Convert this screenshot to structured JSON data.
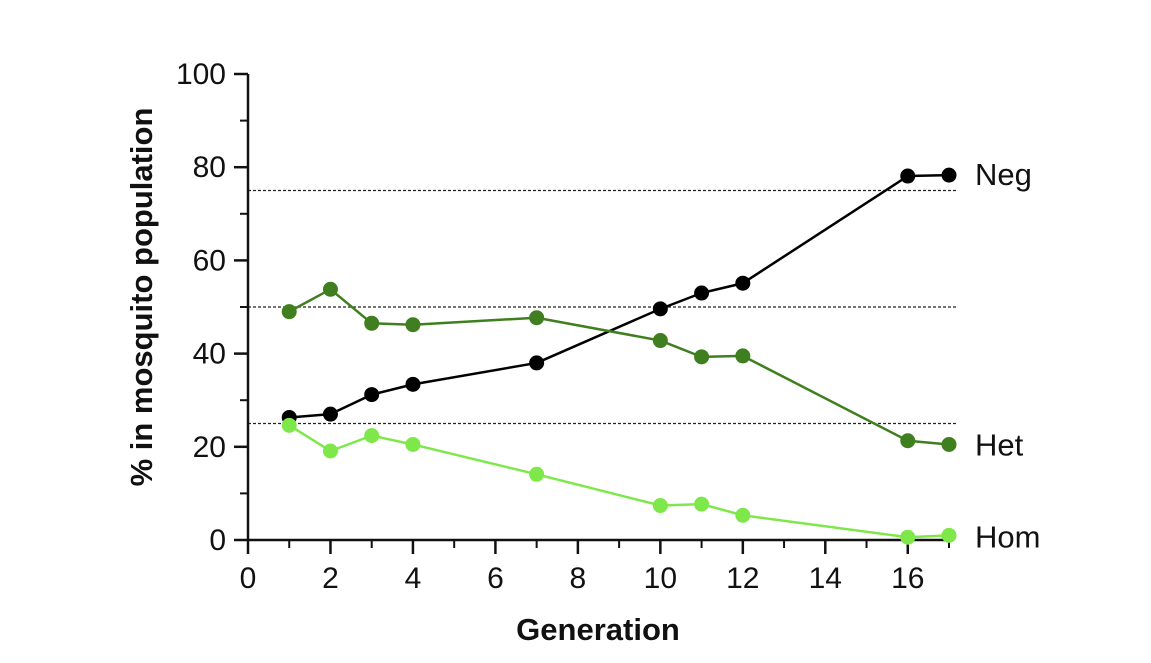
{
  "chart_data": {
    "type": "line",
    "xlabel": "Generation",
    "ylabel": "% in mosquito population",
    "xlim": [
      0,
      17
    ],
    "ylim": [
      0,
      100
    ],
    "x_ticks": [
      0,
      2,
      4,
      6,
      8,
      10,
      12,
      14,
      16
    ],
    "y_ticks": [
      0,
      20,
      40,
      60,
      80,
      100
    ],
    "reference_lines": [
      25,
      50,
      75
    ],
    "legend": "right-end labels",
    "grid": false,
    "series": [
      {
        "name": "Neg",
        "color": "#000000",
        "points": [
          {
            "x": 1,
            "y": 26.3
          },
          {
            "x": 2,
            "y": 27.0
          },
          {
            "x": 3,
            "y": 31.2
          },
          {
            "x": 4,
            "y": 33.4
          },
          {
            "x": 7,
            "y": 38.0
          },
          {
            "x": 10,
            "y": 49.6
          },
          {
            "x": 11,
            "y": 53.0
          },
          {
            "x": 12,
            "y": 55.1
          },
          {
            "x": 16,
            "y": 78.1
          },
          {
            "x": 17,
            "y": 78.3
          }
        ]
      },
      {
        "name": "Het",
        "color": "#3f7f1f",
        "points": [
          {
            "x": 1,
            "y": 49.0
          },
          {
            "x": 2,
            "y": 53.8
          },
          {
            "x": 3,
            "y": 46.5
          },
          {
            "x": 4,
            "y": 46.2
          },
          {
            "x": 7,
            "y": 47.7
          },
          {
            "x": 10,
            "y": 42.8
          },
          {
            "x": 11,
            "y": 39.3
          },
          {
            "x": 12,
            "y": 39.5
          },
          {
            "x": 16,
            "y": 21.3
          },
          {
            "x": 17,
            "y": 20.5
          }
        ]
      },
      {
        "name": "Hom",
        "color": "#7ee84a",
        "points": [
          {
            "x": 1,
            "y": 24.6
          },
          {
            "x": 2,
            "y": 19.1
          },
          {
            "x": 3,
            "y": 22.4
          },
          {
            "x": 4,
            "y": 20.5
          },
          {
            "x": 7,
            "y": 14.1
          },
          {
            "x": 10,
            "y": 7.4
          },
          {
            "x": 11,
            "y": 7.7
          },
          {
            "x": 12,
            "y": 5.3
          },
          {
            "x": 16,
            "y": 0.6
          },
          {
            "x": 17,
            "y": 1.0
          }
        ]
      }
    ]
  }
}
